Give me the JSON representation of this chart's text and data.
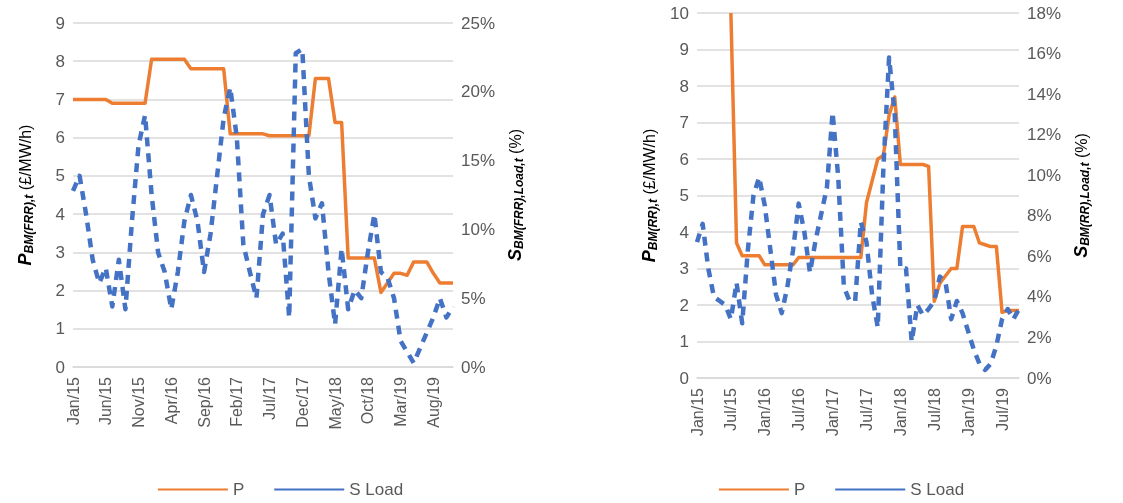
{
  "chart_data": [
    {
      "type": "line",
      "categories": [
        "Jan/15",
        null,
        null,
        null,
        null,
        "Jun/15",
        null,
        null,
        null,
        null,
        "Nov/15",
        null,
        null,
        null,
        null,
        "Apr/16",
        null,
        null,
        null,
        null,
        "Sep/16",
        null,
        null,
        null,
        null,
        "Feb/17",
        null,
        null,
        null,
        null,
        "Jul/17",
        null,
        null,
        null,
        null,
        "Dec/17",
        null,
        null,
        null,
        null,
        "May/18",
        null,
        null,
        null,
        null,
        "Oct/18",
        null,
        null,
        null,
        null,
        "Mar/19",
        null,
        null,
        null,
        null,
        "Aug/19",
        null,
        null,
        null
      ],
      "ylabel": "P$_{BM(FRR),t}$ (£/MW/h)",
      "y2label": "S$_{BM(FRR),Load,t}$ (%)",
      "ylim": [
        0,
        9
      ],
      "yticks": [
        0,
        1,
        2,
        3,
        4,
        5,
        6,
        7,
        8,
        9
      ],
      "y2lim": [
        0,
        25
      ],
      "y2ticks": [
        {
          "value": 0,
          "label": "0%"
        },
        {
          "value": 5,
          "label": "5%"
        },
        {
          "value": 10,
          "label": "10%"
        },
        {
          "value": 15,
          "label": "15%"
        },
        {
          "value": 20,
          "label": "20%"
        },
        {
          "value": 25,
          "label": "25%"
        }
      ],
      "grid": "y",
      "legend": "bottom",
      "marker": "none",
      "series": [
        {
          "name": "P",
          "color": "#ed7d31",
          "line_style": "solid",
          "values": [
            7.0,
            7.0,
            7.0,
            7.0,
            7.0,
            7.0,
            6.9,
            6.9,
            6.9,
            6.9,
            6.9,
            6.9,
            8.05,
            8.05,
            8.05,
            8.05,
            8.05,
            8.05,
            7.8,
            7.8,
            7.8,
            7.8,
            7.8,
            7.8,
            6.1,
            6.1,
            6.1,
            6.1,
            6.1,
            6.1,
            6.05,
            6.05,
            6.05,
            6.05,
            6.05,
            6.05,
            6.05,
            7.55,
            7.55,
            7.55,
            6.4,
            6.4,
            2.85,
            2.85,
            2.85,
            2.85,
            2.85,
            1.95,
            2.2,
            2.45,
            2.45,
            2.4,
            2.75,
            2.75,
            2.75,
            2.45,
            2.2,
            2.2,
            2.2
          ]
        },
        {
          "name": "S Load",
          "color": "#4472c4",
          "line_style": "dashed",
          "axis": "y2",
          "values": [
            12.8,
            13.9,
            11.1,
            7.8,
            6.1,
            7.2,
            4.4,
            7.8,
            4.2,
            10.6,
            16.1,
            18.3,
            12.5,
            8.3,
            6.9,
            4.2,
            6.9,
            10.6,
            12.5,
            10.6,
            6.9,
            9.7,
            13.9,
            18.1,
            20.3,
            16.7,
            8.9,
            6.9,
            5.0,
            11.1,
            12.5,
            8.9,
            9.7,
            3.6,
            22.8,
            23.1,
            13.9,
            10.8,
            11.9,
            6.9,
            3.1,
            8.6,
            4.2,
            5.6,
            5.0,
            8.3,
            11.1,
            6.9,
            6.5,
            5.0,
            1.9,
            1.1,
            0.3,
            1.4,
            2.5,
            3.6,
            5.0,
            3.6,
            4.4
          ]
        }
      ]
    },
    {
      "type": "line",
      "categories": [
        "Jan/15",
        null,
        null,
        null,
        null,
        null,
        "Jul/15",
        null,
        null,
        null,
        null,
        null,
        "Jan/16",
        null,
        null,
        null,
        null,
        null,
        "Jul/16",
        null,
        null,
        null,
        null,
        null,
        "Jan/17",
        null,
        null,
        null,
        null,
        null,
        "Jul/17",
        null,
        null,
        null,
        null,
        null,
        "Jan/18",
        null,
        null,
        null,
        null,
        null,
        "Jul/18",
        null,
        null,
        null,
        null,
        null,
        "Jan/19",
        null,
        null,
        null,
        null,
        null,
        "Jul/19",
        null,
        null,
        null
      ],
      "ylabel": "P$_{BM(RR),t}$ (£/MW/h)",
      "y2label": "S$_{BM(RR),Load,t}$ (%)",
      "ylim": [
        0,
        10
      ],
      "yticks": [
        0,
        1,
        2,
        3,
        4,
        5,
        6,
        7,
        8,
        9,
        10
      ],
      "y2lim": [
        0,
        18
      ],
      "y2ticks": [
        {
          "value": 0,
          "label": "0%"
        },
        {
          "value": 2,
          "label": "2%"
        },
        {
          "value": 4,
          "label": "4%"
        },
        {
          "value": 6,
          "label": "6%"
        },
        {
          "value": 8,
          "label": "8%"
        },
        {
          "value": 10,
          "label": "10%"
        },
        {
          "value": 12,
          "label": "12%"
        },
        {
          "value": 14,
          "label": "14%"
        },
        {
          "value": 16,
          "label": "16%"
        },
        {
          "value": 18,
          "label": "18%"
        }
      ],
      "grid": "y",
      "legend": "bottom",
      "marker": "none",
      "series": [
        {
          "name": "P",
          "color": "#ed7d31",
          "line_style": "solid",
          "values": [
            null,
            null,
            null,
            null,
            null,
            null,
            10,
            3.7,
            3.35,
            3.35,
            3.35,
            3.35,
            3.1,
            3.1,
            3.1,
            3.1,
            3.1,
            3.1,
            3.3,
            3.3,
            3.3,
            3.3,
            3.3,
            3.3,
            3.3,
            3.3,
            3.3,
            3.3,
            3.3,
            3.3,
            4.8,
            5.4,
            6.0,
            6.1,
            7.2,
            7.7,
            5.85,
            5.85,
            5.85,
            5.85,
            5.85,
            5.8,
            2.1,
            2.6,
            2.8,
            3.0,
            3.0,
            4.15,
            4.15,
            4.15,
            3.7,
            3.65,
            3.6,
            3.6,
            1.8,
            1.85,
            1.85,
            1.85
          ]
        },
        {
          "name": "S Load",
          "color": "#4472c4",
          "line_style": "dashed",
          "axis": "y2",
          "values": [
            6.7,
            7.6,
            5.4,
            4.0,
            3.8,
            3.6,
            2.9,
            4.7,
            2.7,
            6.3,
            9.0,
            9.9,
            8.5,
            6.3,
            4.1,
            3.2,
            4.5,
            6.3,
            8.6,
            7.2,
            5.2,
            6.8,
            8.1,
            9.4,
            13.1,
            9.9,
            4.5,
            3.8,
            3.8,
            7.7,
            6.7,
            4.1,
            2.5,
            10.4,
            15.8,
            13.0,
            5.4,
            5.4,
            1.8,
            3.6,
            3.1,
            3.4,
            3.8,
            5.0,
            4.7,
            2.9,
            3.8,
            3.2,
            2.3,
            1.4,
            0.7,
            0.4,
            0.7,
            1.6,
            2.9,
            3.4,
            2.9,
            3.4
          ]
        }
      ]
    }
  ]
}
